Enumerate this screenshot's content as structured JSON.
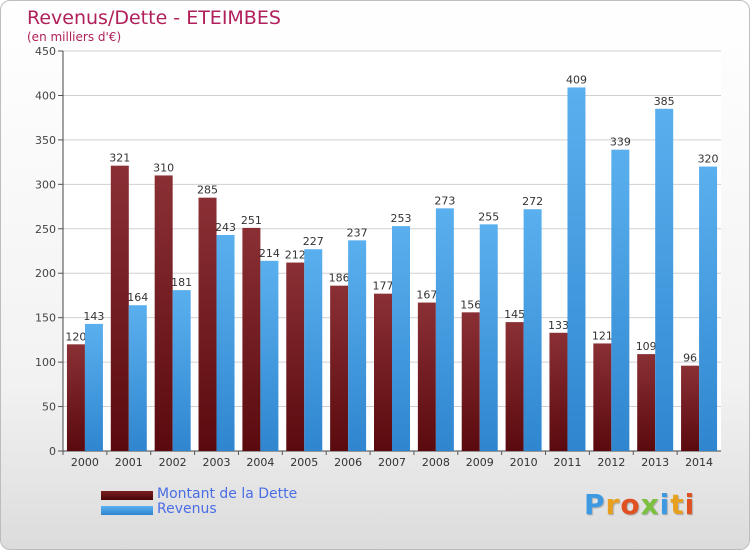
{
  "chart_data": {
    "type": "bar",
    "title": "Revenus/Dette - ETEIMBES",
    "subtitle": "(en milliers d'€)",
    "categories": [
      "2000",
      "2001",
      "2002",
      "2003",
      "2004",
      "2005",
      "2006",
      "2007",
      "2008",
      "2009",
      "2010",
      "2011",
      "2012",
      "2013",
      "2014"
    ],
    "series": [
      {
        "name": "Montant de la Dette",
        "color": "#7a1e22",
        "values": [
          120,
          321,
          310,
          285,
          251,
          212,
          186,
          177,
          167,
          156,
          145,
          133,
          121,
          109,
          96
        ]
      },
      {
        "name": "Revenus",
        "color": "#3d9ae2",
        "values": [
          143,
          164,
          181,
          243,
          214,
          227,
          237,
          253,
          273,
          255,
          272,
          409,
          339,
          385,
          320
        ]
      }
    ],
    "ylim": [
      0,
      450
    ],
    "yticks": [
      0,
      50,
      100,
      150,
      200,
      250,
      300,
      350,
      400,
      450
    ],
    "grid": true,
    "legend_position": "bottom-left"
  },
  "logo": {
    "letters": [
      "P",
      "r",
      "o",
      "x",
      "i",
      "t",
      "i"
    ],
    "colors": [
      "#3d9ae2",
      "#e8a020",
      "#e05020",
      "#7cc040",
      "#3d9ae2",
      "#e8a020",
      "#e05020"
    ]
  }
}
